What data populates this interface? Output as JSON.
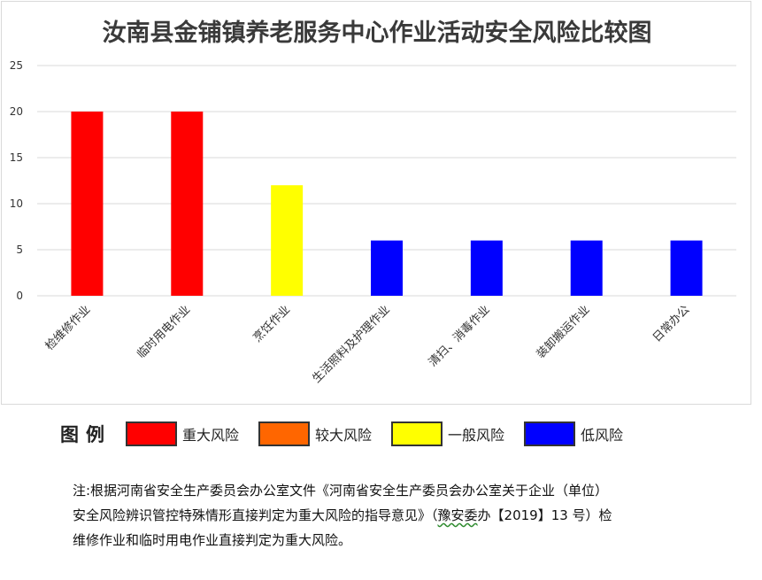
{
  "chart_data": {
    "type": "bar",
    "title": "汝南县金铺镇养老服务中心作业活动安全风险比较图",
    "categories": [
      "检维修作业",
      "临时用电作业",
      "烹饪作业",
      "生活照料及护理作业",
      "清扫、消毒作业",
      "装卸搬运作业",
      "日常办公"
    ],
    "values": [
      20,
      20,
      12,
      6,
      6,
      6,
      6
    ],
    "bar_colors": [
      "#ff0000",
      "#ff0000",
      "#ffff00",
      "#0000ff",
      "#0000ff",
      "#0000ff",
      "#0000ff"
    ],
    "ylim": [
      0,
      25
    ],
    "yticks": [
      0,
      5,
      10,
      15,
      20,
      25
    ],
    "grid": true
  },
  "legend": {
    "title": "图例",
    "items": [
      {
        "label": "重大风险",
        "color": "#ff0000"
      },
      {
        "label": "较大风险",
        "color": "#ff6600"
      },
      {
        "label": "一般风险",
        "color": "#ffff00"
      },
      {
        "label": "低风险",
        "color": "#0000ff"
      }
    ]
  },
  "note": {
    "line1": "注:根据河南省安全生产委员会办公室文件《河南省安全生产委员会办公室关于企业（单位）",
    "line2_a": "安全风险辨识管控特殊情形直接判定为重大风险的指导意见》（",
    "line2_b": "豫安委",
    "line2_c": "办【2019】13 号）检",
    "line3": "维修作业和临时用电作业直接判定为重大风险。"
  }
}
